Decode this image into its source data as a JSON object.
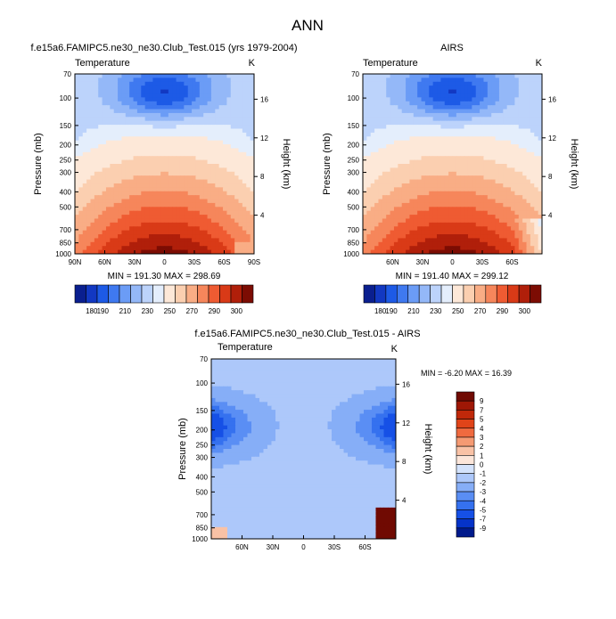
{
  "page_title": "ANN",
  "colors": {
    "abs_levels": [
      "#0a1f8f",
      "#1238c2",
      "#1d5ae6",
      "#3f79f0",
      "#6b9cf6",
      "#94b8f8",
      "#bcd3fb",
      "#e4eefc",
      "#fde8d8",
      "#fbcfb0",
      "#f9ad85",
      "#f6865b",
      "#ef5b32",
      "#d93a17",
      "#b01f0a",
      "#7c0c03"
    ],
    "diff_levels": [
      "#001a8c",
      "#0533c9",
      "#1650e6",
      "#3571ef",
      "#5a8ef4",
      "#86aef7",
      "#adc8fa",
      "#d4e3fc",
      "#fce6da",
      "#f9c2a6",
      "#f59a73",
      "#ef6a3f",
      "#e04419",
      "#c0280a",
      "#9e1705",
      "#700a02"
    ]
  },
  "chart_data": [
    {
      "id": "model",
      "type": "contour",
      "title": "f.e15a6.FAMIPC5.ne30_ne30.Club_Test.015 (yrs 1979-2004)",
      "variable_label": "Temperature",
      "units": "K",
      "ylabel": "Pressure (mb)",
      "y2label": "Height (km)",
      "x_tick_labels": [
        "90N",
        "60N",
        "30N",
        "0",
        "30S",
        "60S",
        "90S"
      ],
      "x_tick_values": [
        90,
        60,
        30,
        0,
        -30,
        -60,
        -90
      ],
      "xlim": [
        90,
        -90
      ],
      "y_tick_labels": [
        "70",
        "100",
        "150",
        "200",
        "250",
        "300",
        "400",
        "500",
        "700",
        "850",
        "1000"
      ],
      "y_tick_values": [
        70,
        100,
        150,
        200,
        250,
        300,
        400,
        500,
        700,
        850,
        1000
      ],
      "ylim": [
        70,
        1000
      ],
      "height_tick_labels": [
        "16",
        "12",
        "8",
        "4"
      ],
      "height_tick_values": [
        16,
        12,
        8,
        4
      ],
      "stats": "MIN = 191.30  MAX = 298.69",
      "min": 191.3,
      "max": 298.69,
      "colorbar_tick_labels": [
        "180",
        "190",
        "210",
        "230",
        "250",
        "270",
        "290",
        "300"
      ]
    },
    {
      "id": "obs",
      "type": "contour",
      "title": "AIRS",
      "variable_label": "Temperature",
      "units": "K",
      "ylabel": "Pressure (mb)",
      "y2label": "Height (km)",
      "x_tick_labels": [
        "60N",
        "30N",
        "0",
        "30S",
        "60S"
      ],
      "x_tick_values": [
        60,
        30,
        0,
        -30,
        -60
      ],
      "xlim": [
        90,
        -90
      ],
      "y_tick_labels": [
        "70",
        "100",
        "150",
        "200",
        "250",
        "300",
        "400",
        "500",
        "700",
        "850",
        "1000"
      ],
      "y_tick_values": [
        70,
        100,
        150,
        200,
        250,
        300,
        400,
        500,
        700,
        850,
        1000
      ],
      "ylim": [
        70,
        1000
      ],
      "height_tick_labels": [
        "16",
        "12",
        "8",
        "4"
      ],
      "height_tick_values": [
        16,
        12,
        8,
        4
      ],
      "stats": "MIN = 191.40  MAX = 299.12",
      "min": 191.4,
      "max": 299.12,
      "colorbar_tick_labels": [
        "180",
        "190",
        "210",
        "230",
        "250",
        "270",
        "290",
        "300"
      ]
    },
    {
      "id": "diff",
      "type": "contour",
      "title": "f.e15a6.FAMIPC5.ne30_ne30.Club_Test.015 - AIRS",
      "variable_label": "Temperature",
      "units": "K",
      "ylabel": "Pressure (mb)",
      "y2label": "Height (km)",
      "x_tick_labels": [
        "60N",
        "30N",
        "0",
        "30S",
        "60S"
      ],
      "x_tick_values": [
        60,
        30,
        0,
        -30,
        -60
      ],
      "xlim": [
        90,
        -90
      ],
      "y_tick_labels": [
        "70",
        "100",
        "150",
        "200",
        "250",
        "300",
        "400",
        "500",
        "700",
        "850",
        "1000"
      ],
      "y_tick_values": [
        70,
        100,
        150,
        200,
        250,
        300,
        400,
        500,
        700,
        850,
        1000
      ],
      "ylim": [
        70,
        1000
      ],
      "height_tick_labels": [
        "16",
        "12",
        "8",
        "4"
      ],
      "height_tick_values": [
        16,
        12,
        8,
        4
      ],
      "stats": "MIN =  -6.20  MAX =  16.39",
      "min": -6.2,
      "max": 16.39,
      "colorbar_tick_labels": [
        "9",
        "7",
        "5",
        "4",
        "3",
        "2",
        "1",
        "0",
        "-1",
        "-2",
        "-3",
        "-4",
        "-5",
        "-7",
        "-9"
      ]
    }
  ]
}
